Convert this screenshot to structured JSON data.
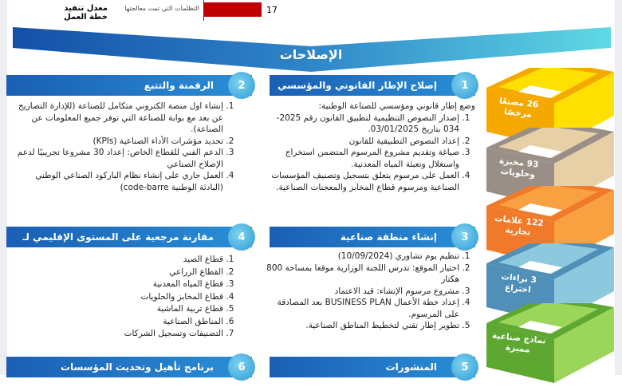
{
  "top": {
    "title": "معدل تنفيذ خطة العمل",
    "metric_label": "التظلمات التي تمت معالجتها",
    "metric_value": "17",
    "bar_color": "#c00000"
  },
  "banner": {
    "title": "الإصلاحات"
  },
  "sections": [
    {
      "num": "1",
      "title": "إصلاح الإطار القانوني والمؤسسي",
      "intro": "وضع إطار قانوني ومؤسسي للصناعة الوطنية:",
      "items": [
        "إصدار النصوص التنظيمية لتطبيق القانون رقم 2025-034 بتاريخ 03/01/2025.",
        "إعداد النصوص التطبيقية للقانون",
        "صياغة وتقديم مشروع المرسوم المتضمن استخراج واستغلال وتعبئة المياه المعدنية.",
        "العمل على مرسوم يتعلق بتسجيل وتصنيف المؤسسات الصناعية ومرسوم قطاع المخابز والمعجنات الصناعية."
      ]
    },
    {
      "num": "2",
      "title": "الرقمنة والتتبع",
      "items": [
        "إنشاء اول منصة الكتروني متكامل للصناعة (للإدارة التصاريح عن بعد مع بوابة للصناعة التي توفر جميع المعلومات عن الصناعة).",
        "تحديد مؤشرات الأداء الصناعية (KPIs)",
        "الدعم الفني للقطاع الخاص: إعداد 30 مشروعا تجريبيًا لدعم الإصلاح الصناعي",
        "العمل جاري على إنشاء نظام الباركود الصناعي الوطني (البادئة الوطنية code-barre)"
      ]
    },
    {
      "num": "3",
      "title": "إنشاء منطقة صناعية",
      "items": [
        "تنظيم يوم تشاوري (10/09/2024)",
        "اختيار الموقع: تدرس اللجنة الوزارية موقعا بمساحة 800 هكتار",
        "مشروع مرسوم الإنشاء: قيد الاعتماد",
        "إعداد خطة الأعمال BUSINESS PLAN بعد المصادقة على المرسوم.",
        "تطوير إطار تقني لتخطيط المناطق الصناعية."
      ]
    },
    {
      "num": "4",
      "title": "مقارنة مرجعية على المستوى الإقليمي لـ",
      "items": [
        "قطاع الصيد",
        "القطاع الزراعي",
        "قطاع المياه المعدنية",
        "قطاع المخابز والحلويات",
        "قطاع تربية الماشية",
        "المناطق الصناعية",
        "التصنيفات وتسجيل الشركات"
      ]
    },
    {
      "num": "5",
      "title": "المنشورات"
    },
    {
      "num": "6",
      "title": "برنامج تأهيل وتحديث المؤسسات"
    }
  ],
  "stack": [
    {
      "label": "26 مصنعًا مرخصًا",
      "color": "#f5a800",
      "inner": "#ffe000"
    },
    {
      "label": "93 مخبزة وحلويات",
      "color": "#9a8f86",
      "inner": "#e7cfa6"
    },
    {
      "label": "122 علامات تجارية",
      "color": "#f07a2a",
      "inner": "#f9a040"
    },
    {
      "label": "3 براءات اختراع",
      "color": "#4f8fb8",
      "inner": "#8cc9de"
    },
    {
      "label": "نماذج صناعية مميزة",
      "color": "#5ea832",
      "inner": "#9bd65a"
    }
  ]
}
